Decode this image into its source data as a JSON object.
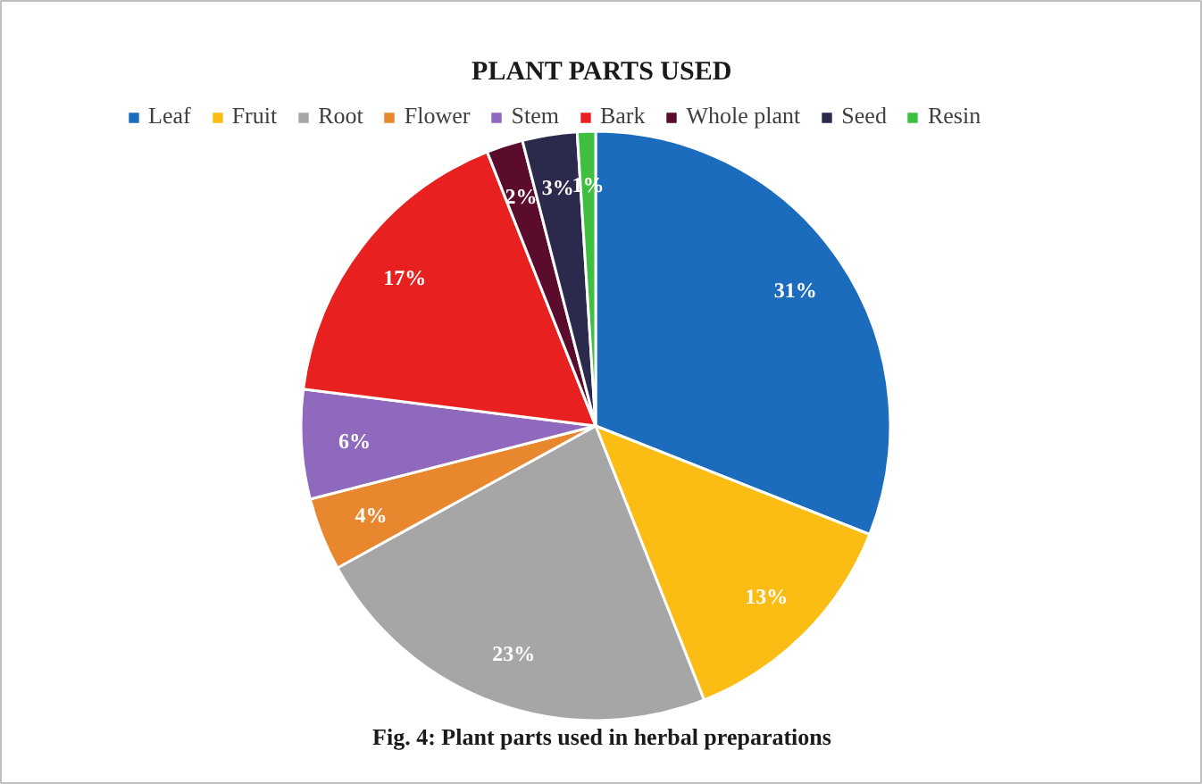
{
  "chart_data": {
    "type": "pie",
    "title": "PLANT PARTS USED",
    "categories": [
      "Leaf",
      "Fruit",
      "Root",
      "Flower",
      "Stem",
      "Bark",
      "Whole plant",
      "Seed",
      "Resin"
    ],
    "values": [
      31,
      13,
      23,
      4,
      6,
      17,
      2,
      3,
      1
    ],
    "colors": [
      "#1b6cbc",
      "#fbbd13",
      "#a6a6a6",
      "#e8872d",
      "#8e69bd",
      "#e8201f",
      "#5b0b2c",
      "#2c2a4c",
      "#3fbf3f"
    ],
    "value_labels": [
      "31%",
      "13%",
      "23%",
      "4%",
      "6%",
      "17%",
      "2%",
      "3%",
      "1%"
    ],
    "legend": "top",
    "annotations": [
      "Fig. 4: Plant parts used in herbal preparations"
    ]
  }
}
